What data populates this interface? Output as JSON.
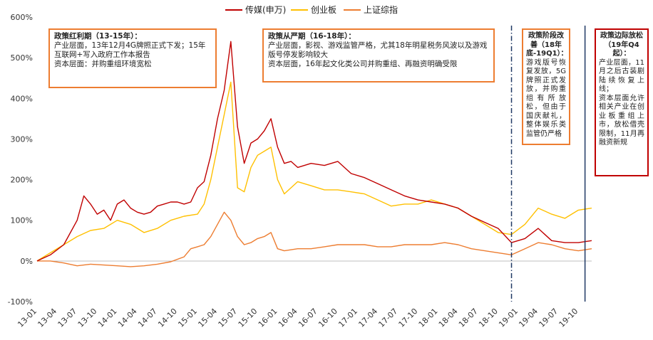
{
  "chart_data": {
    "type": "line",
    "title": "",
    "xlabel": "",
    "ylabel": "",
    "ylim": [
      -100,
      600
    ],
    "yticks": [
      "-100%",
      "0%",
      "100%",
      "200%",
      "300%",
      "400%",
      "500%",
      "600%"
    ],
    "xlim": [
      "2013-01",
      "2019-12"
    ],
    "xticks": [
      "13-01",
      "13-04",
      "13-07",
      "13-10",
      "14-01",
      "14-04",
      "14-07",
      "14-10",
      "15-01",
      "15-04",
      "15-07",
      "15-10",
      "16-01",
      "16-04",
      "16-07",
      "16-10",
      "17-01",
      "17-04",
      "17-07",
      "17-10",
      "18-01",
      "18-04",
      "18-07",
      "18-10",
      "19-01",
      "19-04",
      "19-07",
      "19-10"
    ],
    "legend_position": "top-center",
    "grid": false,
    "series": [
      {
        "name": "传媒(申万)",
        "color": "#C00000",
        "x": [
          "2013-01",
          "2013-03",
          "2013-05",
          "2013-07",
          "2013-08",
          "2013-09",
          "2013-10",
          "2013-11",
          "2013-12",
          "2014-01",
          "2014-02",
          "2014-03",
          "2014-04",
          "2014-05",
          "2014-06",
          "2014-07",
          "2014-08",
          "2014-09",
          "2014-10",
          "2014-11",
          "2014-12",
          "2015-01",
          "2015-02",
          "2015-03",
          "2015-04",
          "2015-05",
          "2015-06",
          "2015-07",
          "2015-08",
          "2015-09",
          "2015-10",
          "2015-11",
          "2015-12",
          "2016-01",
          "2016-02",
          "2016-03",
          "2016-04",
          "2016-06",
          "2016-08",
          "2016-10",
          "2016-12",
          "2017-02",
          "2017-04",
          "2017-06",
          "2017-08",
          "2017-10",
          "2017-12",
          "2018-02",
          "2018-04",
          "2018-06",
          "2018-08",
          "2018-10",
          "2018-12",
          "2019-02",
          "2019-04",
          "2019-06",
          "2019-08",
          "2019-10",
          "2019-12"
        ],
        "values": [
          0,
          15,
          40,
          100,
          160,
          140,
          115,
          125,
          100,
          140,
          150,
          130,
          120,
          115,
          120,
          135,
          140,
          145,
          145,
          140,
          145,
          180,
          195,
          260,
          350,
          420,
          540,
          330,
          240,
          290,
          300,
          320,
          350,
          280,
          240,
          245,
          230,
          240,
          235,
          245,
          215,
          205,
          190,
          175,
          160,
          150,
          145,
          140,
          130,
          110,
          95,
          80,
          45,
          55,
          80,
          50,
          45,
          45,
          50
        ]
      },
      {
        "name": "创业板",
        "color": "#FFC000",
        "x": [
          "2013-01",
          "2013-03",
          "2013-05",
          "2013-07",
          "2013-09",
          "2013-11",
          "2014-01",
          "2014-03",
          "2014-05",
          "2014-07",
          "2014-09",
          "2014-11",
          "2015-01",
          "2015-02",
          "2015-03",
          "2015-04",
          "2015-05",
          "2015-06",
          "2015-07",
          "2015-08",
          "2015-09",
          "2015-10",
          "2015-11",
          "2015-12",
          "2016-01",
          "2016-02",
          "2016-04",
          "2016-06",
          "2016-08",
          "2016-10",
          "2016-12",
          "2017-02",
          "2017-04",
          "2017-06",
          "2017-08",
          "2017-10",
          "2017-12",
          "2018-02",
          "2018-04",
          "2018-06",
          "2018-08",
          "2018-10",
          "2018-12",
          "2019-02",
          "2019-04",
          "2019-06",
          "2019-08",
          "2019-10",
          "2019-12"
        ],
        "values": [
          0,
          20,
          40,
          60,
          75,
          80,
          100,
          90,
          70,
          80,
          100,
          110,
          115,
          140,
          200,
          280,
          360,
          440,
          180,
          170,
          230,
          260,
          270,
          280,
          200,
          165,
          195,
          185,
          175,
          175,
          170,
          165,
          150,
          135,
          140,
          140,
          150,
          140,
          130,
          110,
          90,
          70,
          65,
          90,
          130,
          115,
          105,
          125,
          130
        ]
      },
      {
        "name": "上证综指",
        "color": "#ED7D31",
        "x": [
          "2013-01",
          "2013-03",
          "2013-05",
          "2013-07",
          "2013-09",
          "2013-11",
          "2014-01",
          "2014-03",
          "2014-05",
          "2014-07",
          "2014-09",
          "2014-11",
          "2014-12",
          "2015-01",
          "2015-02",
          "2015-03",
          "2015-04",
          "2015-05",
          "2015-06",
          "2015-07",
          "2015-08",
          "2015-09",
          "2015-10",
          "2015-11",
          "2015-12",
          "2016-01",
          "2016-02",
          "2016-04",
          "2016-06",
          "2016-08",
          "2016-10",
          "2016-12",
          "2017-02",
          "2017-04",
          "2017-06",
          "2017-08",
          "2017-10",
          "2017-12",
          "2018-02",
          "2018-04",
          "2018-06",
          "2018-08",
          "2018-10",
          "2018-12",
          "2019-02",
          "2019-04",
          "2019-06",
          "2019-08",
          "2019-10",
          "2019-12"
        ],
        "values": [
          0,
          0,
          -5,
          -12,
          -8,
          -10,
          -12,
          -14,
          -12,
          -8,
          -2,
          10,
          30,
          35,
          40,
          60,
          90,
          120,
          100,
          60,
          40,
          45,
          55,
          60,
          70,
          30,
          25,
          30,
          30,
          35,
          40,
          40,
          40,
          35,
          35,
          40,
          40,
          40,
          45,
          40,
          30,
          25,
          20,
          15,
          30,
          45,
          40,
          30,
          25,
          30
        ]
      }
    ],
    "annotations": [
      {
        "title": "政策红利期（13-15年）：",
        "body": "产业层面，13年12月4G牌照正式下发；15年互联网+写入政府工作本报告\n资本层面：并购重组环境宽松"
      },
      {
        "title": "政策从严期（16-18年）：",
        "body": "产业层面，影视、游戏监管严格，尤其18年明星税务风波以及游戏版号停发影响较大\n资本层面，16年起文化类公司并购重组、再融资明确受限"
      },
      {
        "title": "政策阶段改善（18年底-19Q1）：",
        "body": "游戏版号恢复发放，5G牌照正式发放，并购重组有所放松，但由于国庆献礼，整体娱乐类监管仍严格"
      },
      {
        "title": "政策边际放松（19年Q4起）：",
        "body": "产业层面，11月之后古装剧陆续恢复上线；\n资本层面允许相关产业在创业板重组上市，放松借壳限制，11月再融资新规"
      }
    ],
    "vertical_markers": [
      {
        "x": "2018-12",
        "style": "dash-dot",
        "color": "#1F3864"
      },
      {
        "x": "2019-11",
        "style": "solid",
        "color": "#1F3864"
      }
    ]
  }
}
